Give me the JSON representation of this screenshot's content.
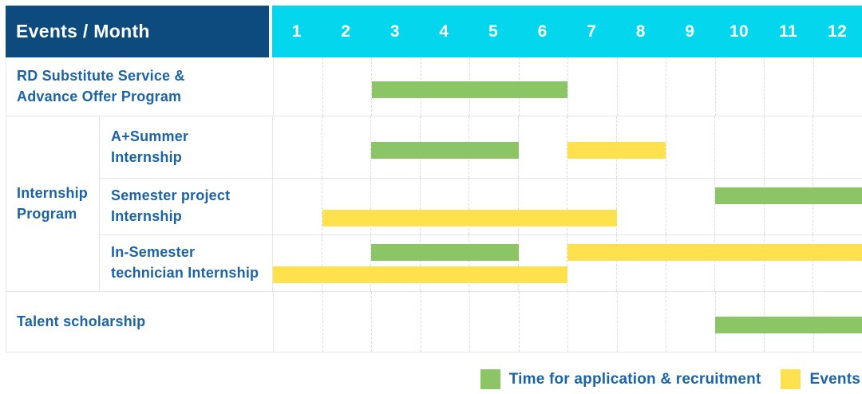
{
  "colors": {
    "header_bg": "#0d4b7e",
    "month_header_bg": "#04d6ee",
    "label_text": "#1a63a8",
    "recruitment_green": "#8bc566",
    "events_yellow": "#ffe14e",
    "grid_line": "#e3e5e7"
  },
  "chart_data": {
    "type": "bar",
    "variant": "gantt-table",
    "title": "Events / Month",
    "x": {
      "label": "Month",
      "ticks": [
        "1",
        "2",
        "3",
        "4",
        "5",
        "6",
        "7",
        "8",
        "9",
        "10",
        "11",
        "12"
      ],
      "range": [
        1,
        12
      ]
    },
    "legend": [
      {
        "series": "recruitment",
        "label": "Time for application & recruitment",
        "color": "#8bc566"
      },
      {
        "series": "events",
        "label": "Events",
        "color": "#ffe14e"
      }
    ],
    "groups": [
      {
        "label": "Internship Program",
        "row_indexes": [
          1,
          2,
          3
        ]
      }
    ],
    "rows": [
      {
        "label": "RD Substitute Service & Advance Offer Program",
        "group": "",
        "lines": [
          [
            {
              "series": "recruitment",
              "start_month": 3,
              "end_month": 6
            }
          ]
        ]
      },
      {
        "label": "A+Summer Internship",
        "group": "Internship Program",
        "lines": [
          [
            {
              "series": "recruitment",
              "start_month": 3,
              "end_month": 5
            },
            {
              "series": "events",
              "start_month": 7,
              "end_month": 8
            }
          ]
        ]
      },
      {
        "label": "Semester project Internship",
        "group": "Internship Program",
        "lines": [
          [
            {
              "series": "recruitment",
              "start_month": 10,
              "end_month": 12
            }
          ],
          [
            {
              "series": "events",
              "start_month": 2,
              "end_month": 7
            }
          ]
        ]
      },
      {
        "label": "In-Semester technician Internship",
        "group": "Internship Program",
        "lines": [
          [
            {
              "series": "recruitment",
              "start_month": 3,
              "end_month": 5
            },
            {
              "series": "events",
              "start_month": 7,
              "end_month": 12
            }
          ],
          [
            {
              "series": "events",
              "start_month": 1,
              "end_month": 6
            }
          ]
        ]
      },
      {
        "label": "Talent scholarship",
        "group": "",
        "lines": [
          [
            {
              "series": "recruitment",
              "start_month": 10,
              "end_month": 12
            }
          ]
        ]
      }
    ]
  }
}
